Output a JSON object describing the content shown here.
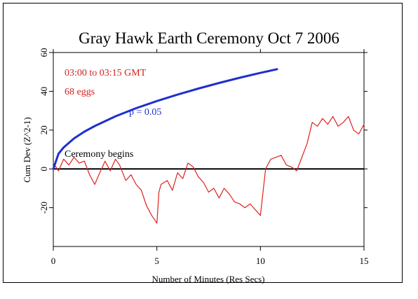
{
  "chart_data": {
    "type": "line",
    "title": "Gray Hawk Earth Ceremony Oct 7 2006",
    "xlabel": "Number of Minutes (Res Secs)",
    "ylabel": "Cum Dev (Z^2-1)",
    "xlim": [
      0,
      15
    ],
    "ylim": [
      -40,
      60
    ],
    "x_ticks": [
      0,
      5,
      10,
      15
    ],
    "y_ticks": [
      -20,
      0,
      20,
      40,
      60
    ],
    "grid": false,
    "annotations": [
      {
        "text": "03:00 to 03:15 GMT",
        "color": "#d42020"
      },
      {
        "text": "68 eggs",
        "color": "#d42020"
      },
      {
        "text": "p = 0.05",
        "color": "#1f2fcf"
      },
      {
        "text": "Ceremony begins",
        "color": "#000000"
      }
    ],
    "series": [
      {
        "role": "cumulative deviation",
        "color": "#e02020",
        "x": [
          0,
          0.25,
          0.5,
          0.75,
          1.0,
          1.25,
          1.5,
          1.75,
          2.0,
          2.2,
          2.5,
          2.75,
          3.0,
          3.2,
          3.5,
          3.75,
          4.0,
          4.25,
          4.5,
          4.75,
          5.0,
          5.1,
          5.2,
          5.5,
          5.75,
          6.0,
          6.25,
          6.5,
          6.75,
          7.0,
          7.25,
          7.5,
          7.75,
          8.0,
          8.25,
          8.5,
          8.75,
          9.0,
          9.25,
          9.5,
          9.75,
          10.0,
          10.25,
          10.5,
          10.75,
          11.0,
          11.25,
          11.5,
          11.75,
          12.0,
          12.25,
          12.5,
          12.75,
          13.0,
          13.25,
          13.5,
          13.75,
          14.0,
          14.25,
          14.5,
          14.75,
          15.0
        ],
        "values": [
          3,
          -1,
          5,
          2,
          6,
          3,
          4,
          -3,
          -8,
          -3,
          4,
          -1,
          5,
          2,
          -6,
          -3,
          -8,
          -11,
          -19,
          -24,
          -28,
          -12,
          -8,
          -6,
          -11,
          -2,
          -5,
          3,
          1,
          -4,
          -7,
          -12,
          -10,
          -15,
          -10,
          -13,
          -17,
          -18,
          -20,
          -18,
          -21,
          -24,
          0,
          5,
          6,
          7,
          2,
          1,
          -1,
          6,
          13,
          24,
          22,
          26,
          23,
          27,
          22,
          24,
          27,
          20,
          18,
          23
        ]
      },
      {
        "role": "p = 0.05 envelope",
        "color": "#1f2fcf",
        "x": [
          0,
          0.25,
          0.5,
          1,
          1.5,
          2,
          3,
          4,
          5,
          6,
          7,
          8,
          9,
          10,
          10.8
        ],
        "values": [
          0,
          7.8,
          11.1,
          15.7,
          19.2,
          22.1,
          27.1,
          31.3,
          35.0,
          38.3,
          41.4,
          44.3,
          47.0,
          49.5,
          51.4
        ]
      }
    ]
  }
}
